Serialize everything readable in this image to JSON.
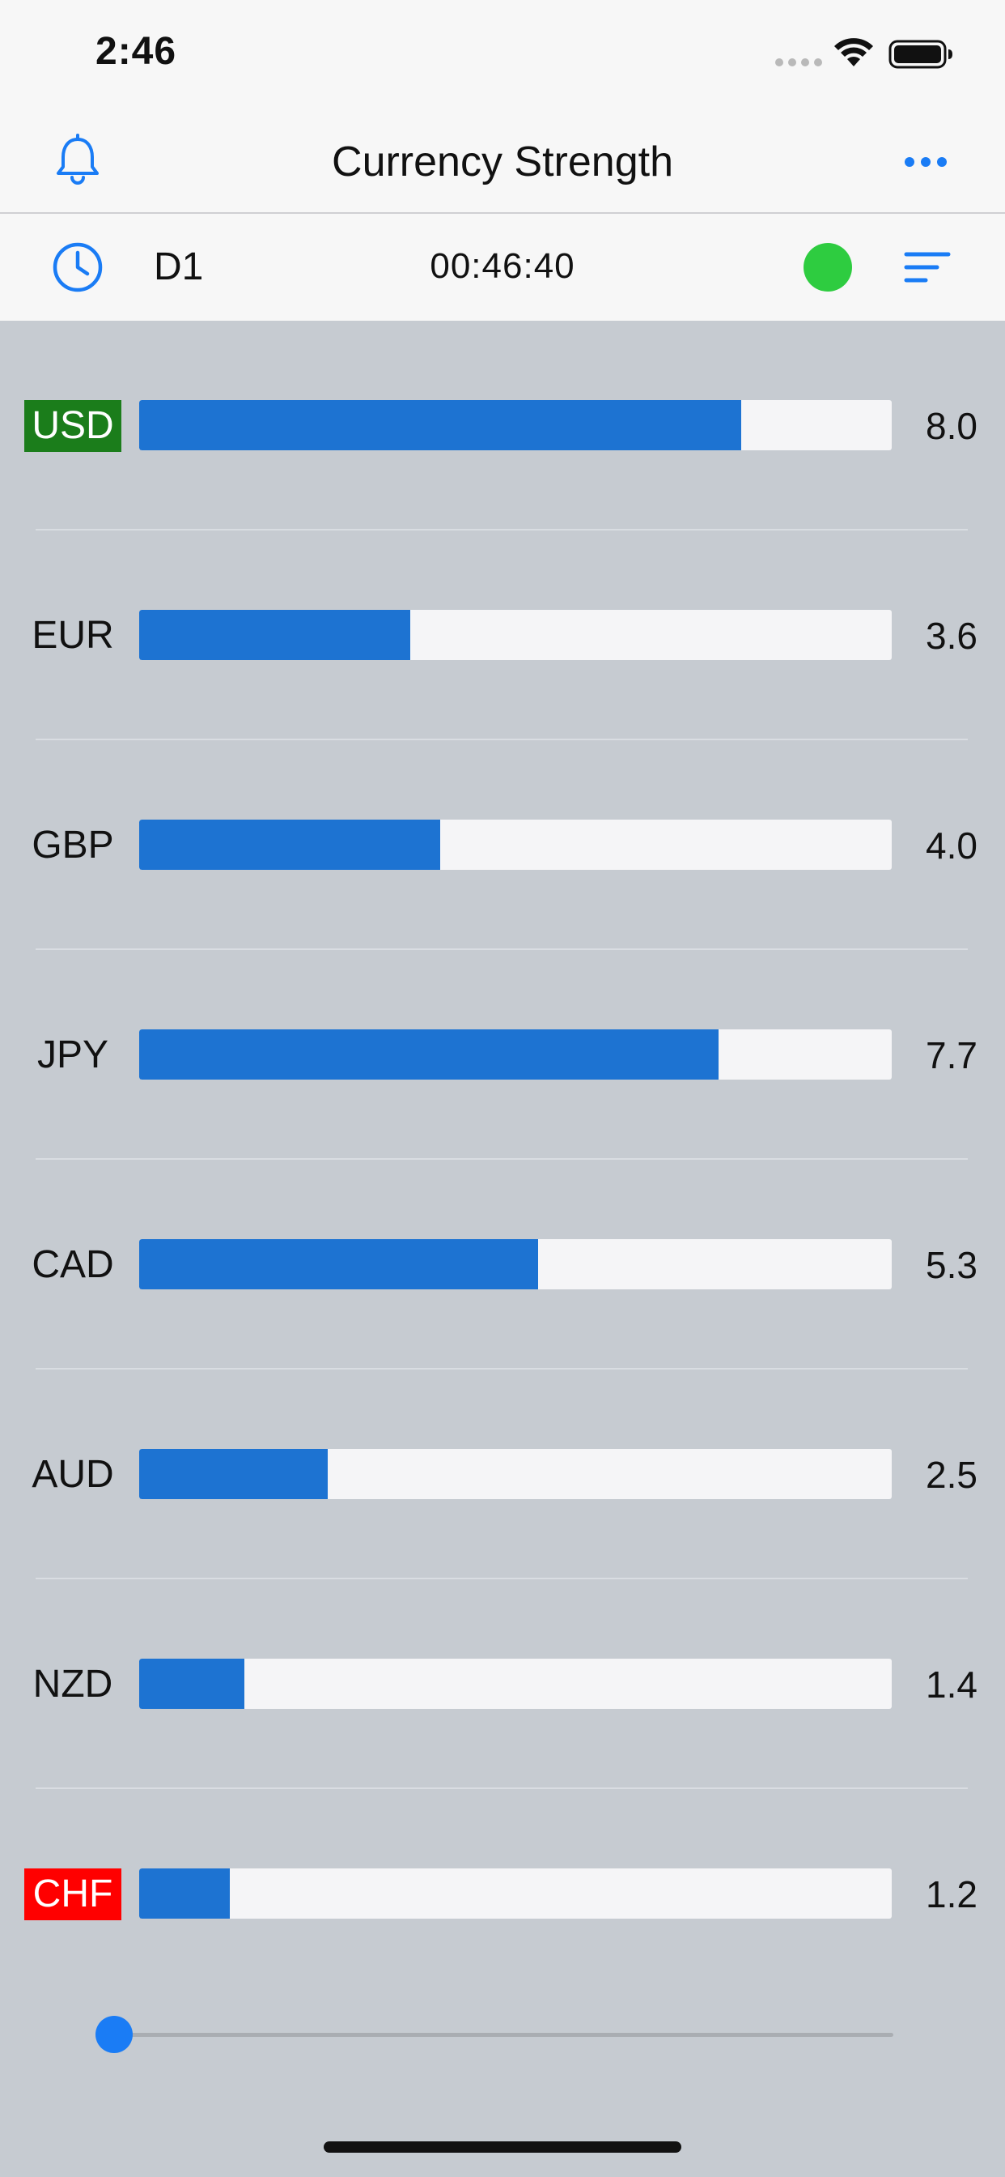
{
  "status_bar": {
    "time": "2:46"
  },
  "nav": {
    "title": "Currency Strength"
  },
  "toolbar": {
    "timeframe": "D1",
    "countdown": "00:46:40",
    "status_color": "#2ecc40"
  },
  "colors": {
    "accent": "#1a7cf5",
    "bar_fill": "#1d73d2",
    "strong": "#1b7d1b",
    "weak": "#ff0000"
  },
  "scale_max": 10,
  "currencies": [
    {
      "code": "USD",
      "value": "8.0",
      "strength": 8.0,
      "highlight": "strong"
    },
    {
      "code": "EUR",
      "value": "3.6",
      "strength": 3.6,
      "highlight": "none"
    },
    {
      "code": "GBP",
      "value": "4.0",
      "strength": 4.0,
      "highlight": "none"
    },
    {
      "code": "JPY",
      "value": "7.7",
      "strength": 7.7,
      "highlight": "none"
    },
    {
      "code": "CAD",
      "value": "5.3",
      "strength": 5.3,
      "highlight": "none"
    },
    {
      "code": "AUD",
      "value": "2.5",
      "strength": 2.5,
      "highlight": "none"
    },
    {
      "code": "NZD",
      "value": "1.4",
      "strength": 1.4,
      "highlight": "none"
    },
    {
      "code": "CHF",
      "value": "1.2",
      "strength": 1.2,
      "highlight": "weak"
    }
  ],
  "slider": {
    "position": 0
  }
}
